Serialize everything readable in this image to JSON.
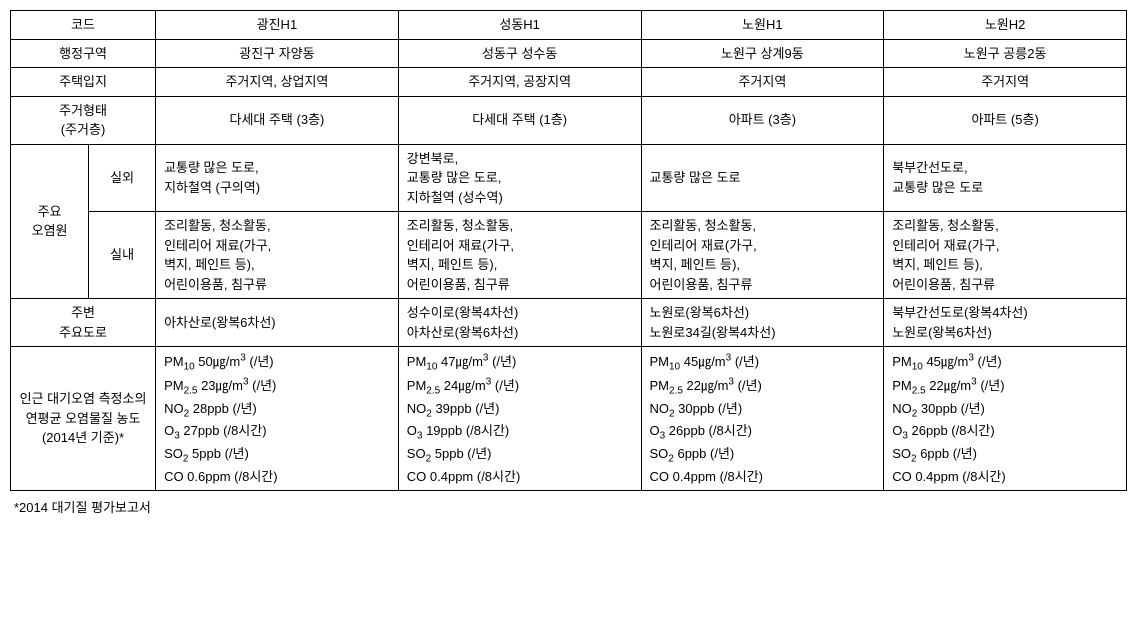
{
  "headers": {
    "code": "코드",
    "gwangjin": "광진H1",
    "seongdong": "성동H1",
    "nowon1": "노원H1",
    "nowon2": "노원H2"
  },
  "rows": {
    "district": {
      "label": "행정구역",
      "gwangjin": "광진구 자양동",
      "seongdong": "성동구 성수동",
      "nowon1": "노원구 상계9동",
      "nowon2": "노원구 공릉2동"
    },
    "location": {
      "label": "주택입지",
      "gwangjin": "주거지역, 상업지역",
      "seongdong": "주거지역, 공장지역",
      "nowon1": "주거지역",
      "nowon2": "주거지역"
    },
    "housing": {
      "label": "주거형태\n(주거층)",
      "gwangjin": "다세대 주택 (3층)",
      "seongdong": "다세대 주택 (1층)",
      "nowon1": "아파트 (3층)",
      "nowon2": "아파트 (5층)"
    },
    "pollution": {
      "label": "주요\n오염원",
      "outdoor": {
        "sublabel": "실외",
        "gwangjin": "교통량 많은 도로,\n지하철역 (구의역)",
        "seongdong": "강변북로,\n교통량 많은 도로,\n지하철역 (성수역)",
        "nowon1": "교통량 많은 도로",
        "nowon2": "북부간선도로,\n교통량 많은 도로"
      },
      "indoor": {
        "sublabel": "실내",
        "gwangjin": "조리활동, 청소활동,\n인테리어 재료(가구,\n벽지, 페인트 등),\n어린이용품, 침구류",
        "seongdong": "조리활동, 청소활동,\n인테리어 재료(가구,\n벽지, 페인트 등),\n어린이용품, 침구류",
        "nowon1": "조리활동, 청소활동,\n인테리어 재료(가구,\n벽지, 페인트 등),\n어린이용품, 침구류",
        "nowon2": "조리활동, 청소활동,\n인테리어 재료(가구,\n벽지, 페인트 등),\n어린이용품, 침구류"
      }
    },
    "roads": {
      "label": "주변\n주요도로",
      "gwangjin": "아차산로(왕복6차선)",
      "seongdong": "성수이로(왕복4차선)\n아차산로(왕복6차선)",
      "nowon1": "노원로(왕복6차선)\n노원로34길(왕복4차선)",
      "nowon2": "북부간선도로(왕복4차선)\n노원로(왕복6차선)"
    },
    "airquality": {
      "label": "인근 대기오염 측정소의\n연평균 오염물질 농도\n(2014년 기준)*",
      "gwangjin": {
        "pm10": "PM₁₀ 50㎍/m³ (/년)",
        "pm25": "PM₂.₅ 23㎍/m³ (/년)",
        "no2": "NO₂ 28ppb (/년)",
        "o3": "O₃ 27ppb (/8시간)",
        "so2": "SO₂ 5ppb (/년)",
        "co": "CO 0.6ppm (/8시간)"
      },
      "seongdong": {
        "pm10": "PM₁₀ 47㎍/m³ (/년)",
        "pm25": "PM₂.₅ 24㎍/m³ (/년)",
        "no2": "NO₂ 39ppb (/년)",
        "o3": "O₃ 19ppb (/8시간)",
        "so2": "SO₂ 5ppb (/년)",
        "co": "CO 0.4ppm (/8시간)"
      },
      "nowon1": {
        "pm10": "PM₁₀ 45㎍/m³ (/년)",
        "pm25": "PM₂.₅ 22㎍/m³ (/년)",
        "no2": "NO₂ 30ppb (/년)",
        "o3": "O₃ 26ppb (/8시간)",
        "so2": "SO₂ 6ppb (/년)",
        "co": "CO 0.4ppm (/8시간)"
      },
      "nowon2": {
        "pm10": "PM₁₀ 45㎍/m³ (/년)",
        "pm25": "PM₂.₅ 22㎍/m³ (/년)",
        "no2": "NO₂ 30ppb (/년)",
        "o3": "O₃ 26ppb (/8시간)",
        "so2": "SO₂ 6ppb (/년)",
        "co": "CO 0.4ppm (/8시간)"
      }
    }
  },
  "footnote": "*2014 대기질 평가보고서"
}
